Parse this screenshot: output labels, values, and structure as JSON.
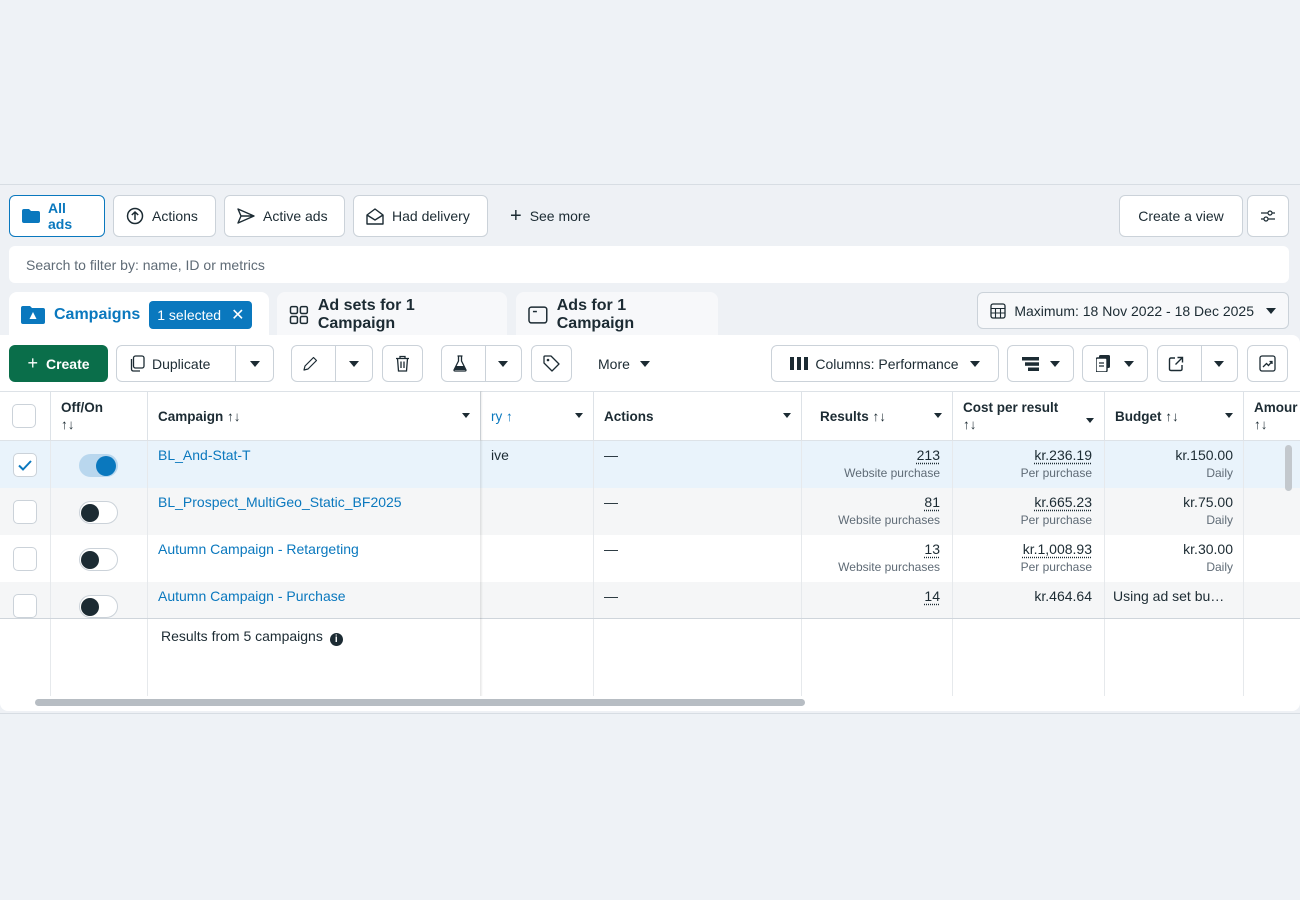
{
  "views": {
    "all_ads": "All ads",
    "actions": "Actions",
    "active_ads": "Active ads",
    "had_delivery": "Had delivery",
    "see_more": "See more",
    "create_view": "Create a view"
  },
  "search": {
    "placeholder": "Search to filter by: name, ID or metrics"
  },
  "tabs": {
    "campaigns": "Campaigns",
    "selected_badge": "1 selected",
    "ad_sets": "Ad sets for 1 Campaign",
    "ads": "Ads for 1 Campaign"
  },
  "date_range": "Maximum: 18 Nov 2022 - 18 Dec 2025",
  "toolbar": {
    "create": "Create",
    "duplicate": "Duplicate",
    "more": "More",
    "columns": "Columns: Performance"
  },
  "table": {
    "headers": {
      "offon": "Off/On",
      "sort": "↑↓",
      "campaign": "Campaign ↑↓",
      "delivery": "ry ↑",
      "actions": "Actions",
      "results": "Results ↑↓",
      "cost_per_result": "Cost per result",
      "budget": "Budget ↑↓",
      "amount": "Amour"
    },
    "rows": [
      {
        "name": "BL_And-Stat-T",
        "delivery": "ive",
        "actions": "—",
        "results": "213",
        "results_sub": "Website purchase",
        "cost": "kr.236.19",
        "cost_sub": "Per purchase",
        "budget": "kr.150.00",
        "budget_sub": "Daily",
        "selected": true,
        "on": true
      },
      {
        "name": "BL_Prospect_MultiGeo_Static_BF2025",
        "delivery": "",
        "actions": "—",
        "results": "81",
        "results_sub": "Website purchases",
        "cost": "kr.665.23",
        "cost_sub": "Per purchase",
        "budget": "kr.75.00",
        "budget_sub": "Daily",
        "selected": false,
        "on": false
      },
      {
        "name": "Autumn Campaign - Retargeting",
        "delivery": "",
        "actions": "—",
        "results": "13",
        "results_sub": "Website purchases",
        "cost": "kr.1,008.93",
        "cost_sub": "Per purchase",
        "budget": "kr.30.00",
        "budget_sub": "Daily",
        "selected": false,
        "on": false
      },
      {
        "name": "Autumn Campaign - Purchase",
        "delivery": "",
        "actions": "—",
        "results": "14",
        "results_sub": "",
        "cost": "kr.464.64",
        "cost_sub": "",
        "budget": "Using ad set bu…",
        "budget_sub": "",
        "selected": false,
        "on": false
      }
    ],
    "footer": "Results from 5 campaigns"
  },
  "colors": {
    "accent": "#0a78be",
    "create_green": "#0a6e4a"
  }
}
